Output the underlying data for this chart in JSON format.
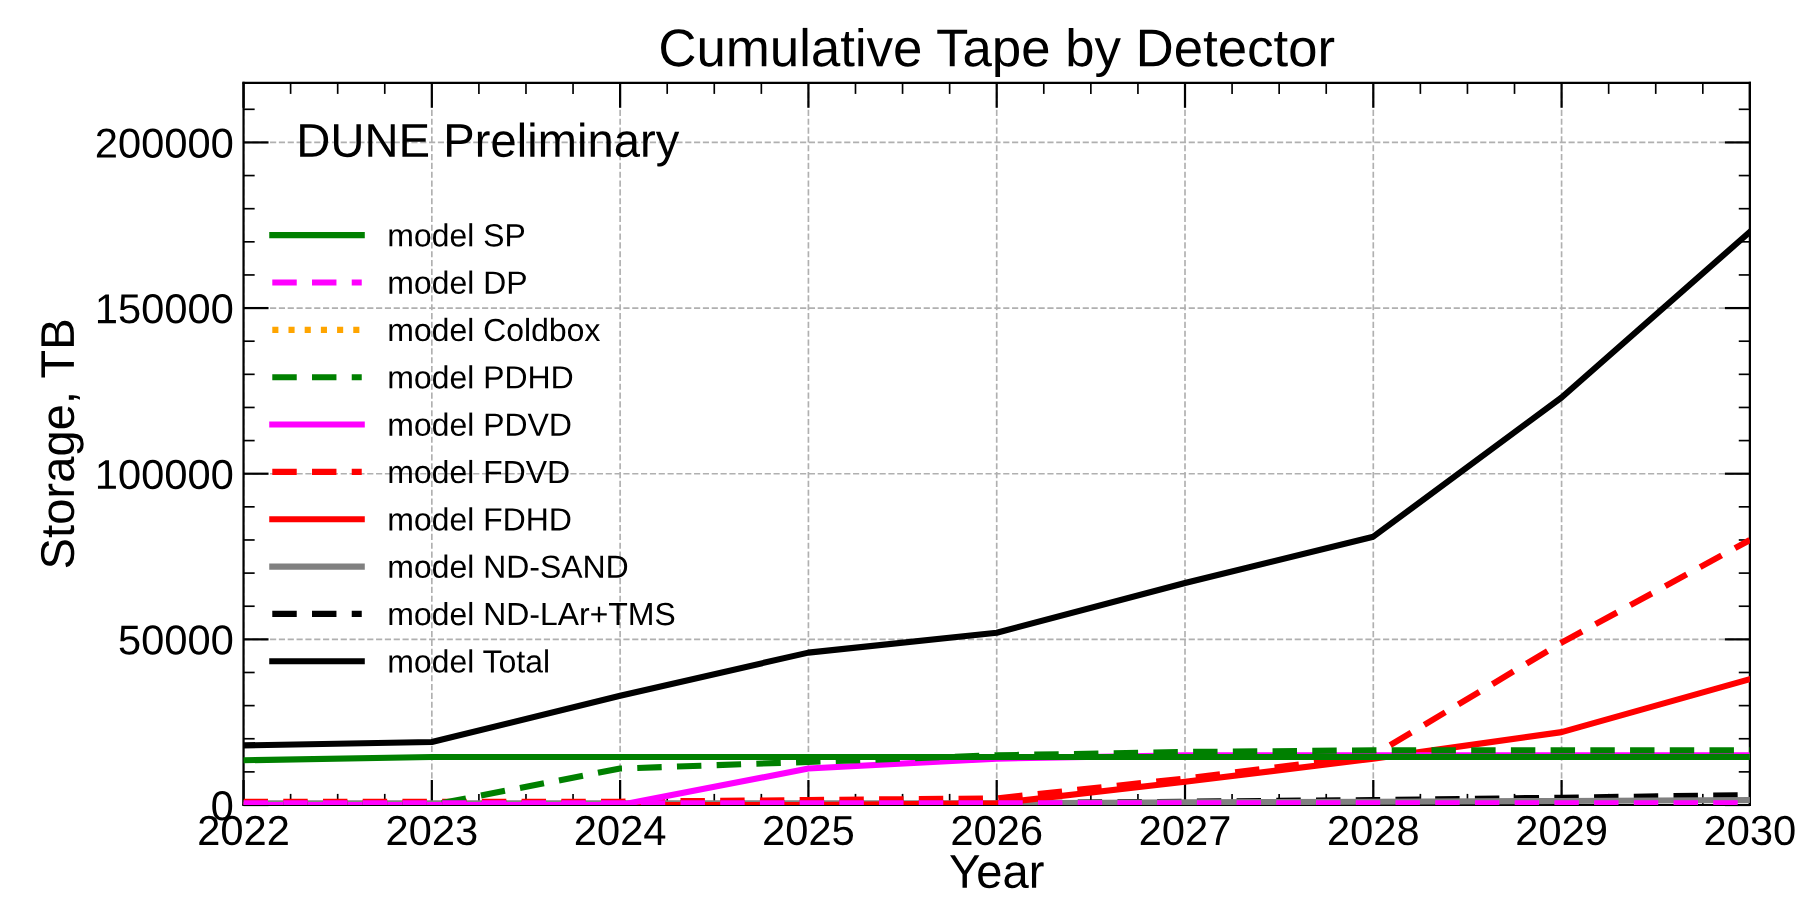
{
  "chart_data": {
    "type": "line",
    "title": "Cumulative Tape by Detector",
    "xlabel": "Year",
    "ylabel": "Storage, TB",
    "annotations": [
      "DUNE Preliminary"
    ],
    "x": [
      2022,
      2023,
      2024,
      2025,
      2026,
      2027,
      2028,
      2029,
      2030
    ],
    "xlim": [
      2022,
      2030
    ],
    "xticks": [
      2022,
      2023,
      2024,
      2025,
      2026,
      2027,
      2028,
      2029,
      2030
    ],
    "ylim": [
      0,
      218000
    ],
    "yticks": [
      0,
      50000,
      100000,
      150000,
      200000
    ],
    "grid": true,
    "legend": "left",
    "series": [
      {
        "name": "model SP",
        "color": "#008000",
        "line_style": "solid",
        "values": [
          13500,
          14500,
          14500,
          14500,
          14500,
          14500,
          14500,
          14500,
          14500
        ]
      },
      {
        "name": "model DP",
        "color": "#ff00ff",
        "line_style": "dashed",
        "values": [
          500,
          500,
          500,
          500,
          500,
          500,
          500,
          500,
          500
        ]
      },
      {
        "name": "model Coldbox",
        "color": "#ffa500",
        "line_style": "dotted",
        "values": [
          null,
          null,
          null,
          null,
          null,
          null,
          null,
          null,
          null
        ]
      },
      {
        "name": "model PDHD",
        "color": "#008000",
        "line_style": "dashed",
        "values": [
          0,
          0,
          11000,
          13000,
          15000,
          16000,
          16500,
          16500,
          16500
        ]
      },
      {
        "name": "model PDVD",
        "color": "#ff00ff",
        "line_style": "solid",
        "values": [
          0,
          0,
          0,
          11000,
          14000,
          15000,
          15000,
          15000,
          15000
        ]
      },
      {
        "name": "model FDVD",
        "color": "#ff0000",
        "line_style": "dashed",
        "values": [
          1000,
          1000,
          1000,
          1500,
          2000,
          8000,
          15000,
          49000,
          80000
        ]
      },
      {
        "name": "model FDHD",
        "color": "#ff0000",
        "line_style": "solid",
        "values": [
          0,
          0,
          0,
          0,
          500,
          7000,
          14000,
          22000,
          38000
        ]
      },
      {
        "name": "model ND-SAND",
        "color": "#808080",
        "line_style": "solid",
        "values": [
          500,
          500,
          500,
          500,
          500,
          800,
          1000,
          1200,
          1500
        ]
      },
      {
        "name": "model ND-LAr+TMS",
        "color": "#000000",
        "line_style": "dashed",
        "values": [
          500,
          500,
          500,
          500,
          500,
          1000,
          1500,
          2200,
          3000
        ]
      },
      {
        "name": "model Total",
        "color": "#000000",
        "line_style": "solid",
        "values": [
          18000,
          19000,
          33000,
          46000,
          52000,
          67000,
          81000,
          123000,
          173000
        ]
      }
    ]
  }
}
